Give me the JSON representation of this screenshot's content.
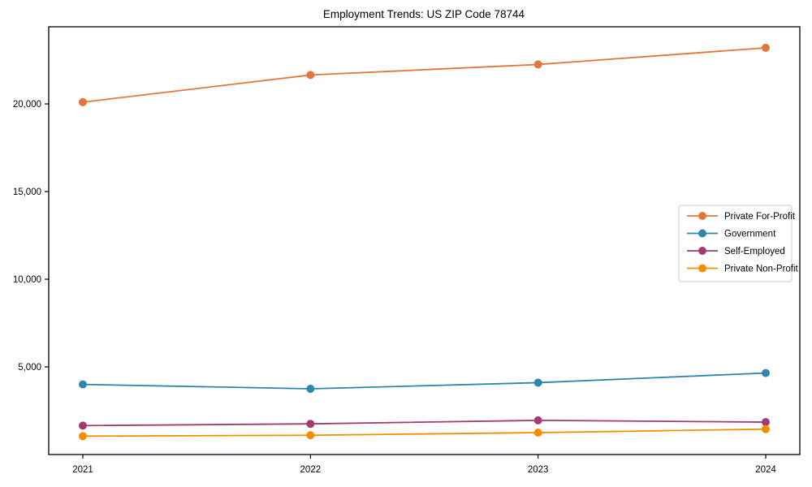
{
  "chart_data": {
    "type": "line",
    "title": "Employment Trends: US ZIP Code 78744",
    "xlabel": "",
    "ylabel": "",
    "x_categories": [
      "2021",
      "2022",
      "2023",
      "2024"
    ],
    "series": [
      {
        "name": "Private For-Profit",
        "color": "#E2773E",
        "values": [
          20100,
          21650,
          22250,
          23200
        ]
      },
      {
        "name": "Government",
        "color": "#2E86AB",
        "values": [
          4000,
          3750,
          4100,
          4650
        ]
      },
      {
        "name": "Self-Employed",
        "color": "#A23B72",
        "values": [
          1650,
          1750,
          1950,
          1850
        ]
      },
      {
        "name": "Private Non-Profit",
        "color": "#F18F01",
        "values": [
          1050,
          1100,
          1250,
          1450
        ]
      }
    ],
    "y_ticks": [
      {
        "value": 5000,
        "label": "5,000"
      },
      {
        "value": 10000,
        "label": "10,000"
      },
      {
        "value": 15000,
        "label": "15,000"
      },
      {
        "value": 20000,
        "label": "20,000"
      }
    ],
    "ylim": [
      0,
      24400
    ],
    "grid": false,
    "legend_position": "center-right",
    "marker": "circle",
    "frame_color": "#000000",
    "legend_border_color": "#cccccc",
    "background_color": "#ffffff"
  }
}
